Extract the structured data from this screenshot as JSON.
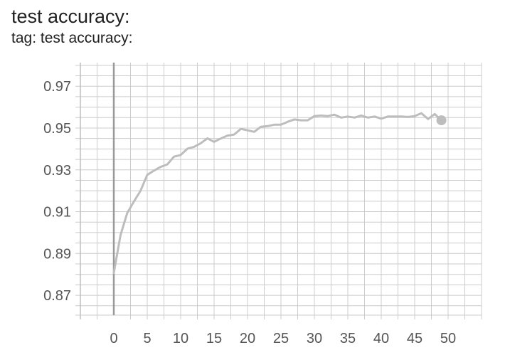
{
  "card": {
    "title": "test accuracy:",
    "subtitle": "tag: test accuracy:"
  },
  "chart_data": {
    "type": "line",
    "title": "test accuracy:",
    "subtitle": "tag: test accuracy:",
    "xlabel": "",
    "ylabel": "",
    "xlim": [
      -5,
      55
    ],
    "ylim": [
      0.8605,
      0.9813
    ],
    "xticks": [
      0,
      5,
      10,
      15,
      20,
      25,
      30,
      35,
      40,
      45,
      50
    ],
    "yticks": [
      0.87,
      0.89,
      0.91,
      0.93,
      0.95,
      0.97
    ],
    "ytick_labels": [
      "0.87",
      "0.89",
      "0.91",
      "0.93",
      "0.95",
      "0.97"
    ],
    "grid": true,
    "line_color": "#bdbdbd",
    "highlight_point": {
      "x": 49,
      "y": 0.9537
    },
    "series": [
      {
        "x": [
          0,
          1,
          2,
          3,
          4,
          5,
          6,
          7,
          8,
          9,
          10,
          11,
          12,
          13,
          14,
          15,
          16,
          17,
          18,
          19,
          20,
          21,
          22,
          23,
          24,
          25,
          26,
          27,
          28,
          29,
          30,
          31,
          32,
          33,
          34,
          35,
          36,
          37,
          38,
          39,
          40,
          41,
          42,
          43,
          44,
          45,
          46,
          47,
          48,
          49
        ],
        "values": [
          0.8807,
          0.8987,
          0.9093,
          0.9148,
          0.92,
          0.9276,
          0.9296,
          0.9314,
          0.9326,
          0.9363,
          0.9371,
          0.9401,
          0.941,
          0.9427,
          0.9451,
          0.9434,
          0.945,
          0.9464,
          0.9469,
          0.9496,
          0.9489,
          0.9482,
          0.9506,
          0.9509,
          0.9516,
          0.9516,
          0.953,
          0.9541,
          0.9537,
          0.9537,
          0.9557,
          0.956,
          0.9557,
          0.9564,
          0.955,
          0.9555,
          0.955,
          0.956,
          0.955,
          0.9555,
          0.9545,
          0.9555,
          0.9555,
          0.9555,
          0.9553,
          0.9557,
          0.9571,
          0.9543,
          0.9567,
          0.9537
        ]
      }
    ]
  }
}
